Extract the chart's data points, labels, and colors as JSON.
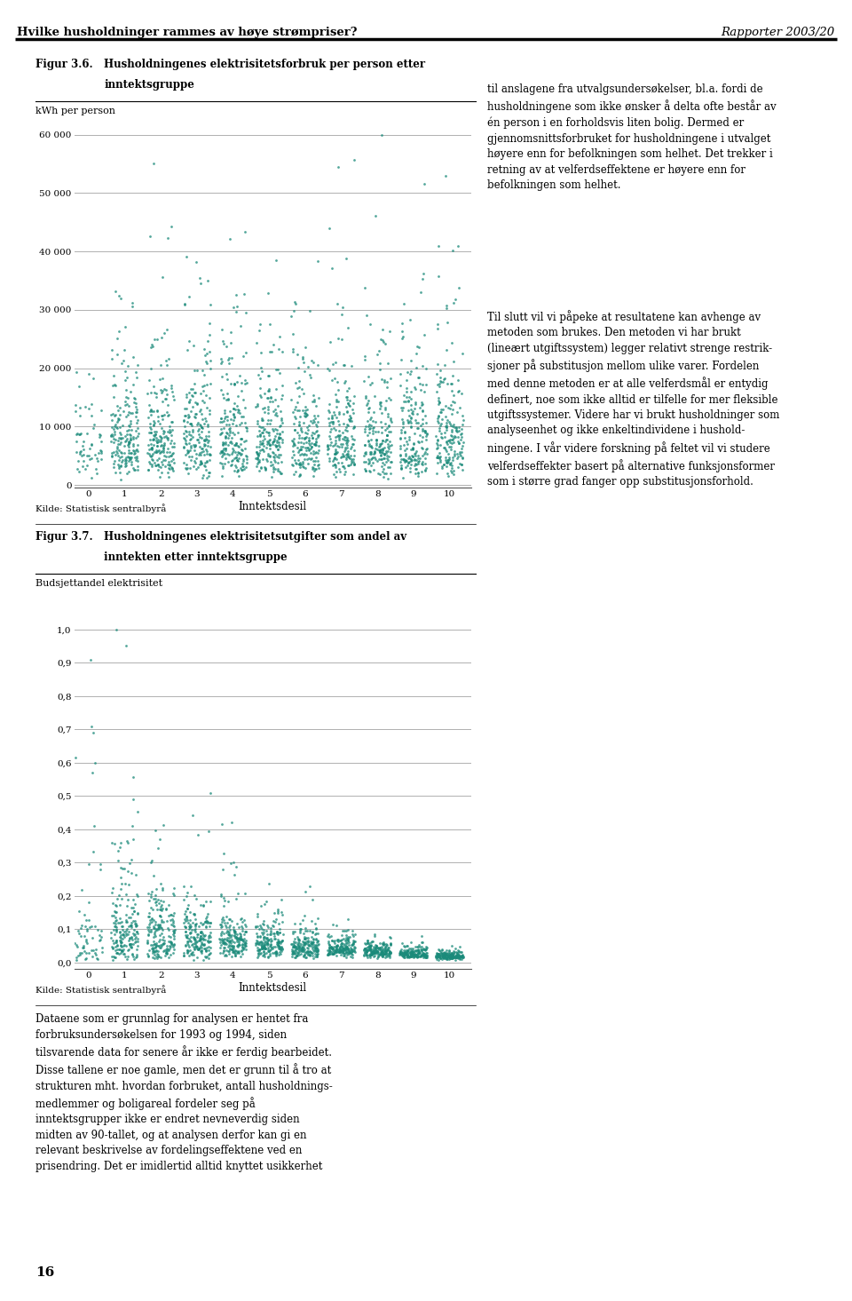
{
  "page_title_left": "Hvilke husholdninger rammes av høye strømpriser?",
  "page_title_right": "Rapporter 2003/20",
  "fig1_label": "Figur 3.6.",
  "fig1_title_line1": "Husholdningenes elektrisitetsforbruk per person etter",
  "fig1_title_line2": "inntektsgruppe",
  "fig1_ylabel": "kWh per person",
  "fig1_xlabel": "Inntektsdesil",
  "fig1_yticks": [
    0,
    10000,
    20000,
    30000,
    40000,
    50000,
    60000
  ],
  "fig1_ytick_labels": [
    "0",
    "10 000",
    "20 000",
    "30 000",
    "40 000",
    "50 000",
    "60 000"
  ],
  "fig1_xticks": [
    0,
    1,
    2,
    3,
    4,
    5,
    6,
    7,
    8,
    9,
    10
  ],
  "fig1_ylim": [
    -500,
    63000
  ],
  "fig1_xlim": [
    -0.4,
    10.6
  ],
  "fig2_label": "Figur 3.7.",
  "fig2_title_line1": "Husholdningenes elektrisitetsutgifter som andel av",
  "fig2_title_line2": "inntekten etter inntektsgruppe",
  "fig2_ylabel": "Budsjettandel elektrisitet",
  "fig2_xlabel": "Inntektsdesil",
  "fig2_yticks": [
    0.0,
    0.1,
    0.2,
    0.3,
    0.4,
    0.5,
    0.6,
    0.7,
    0.8,
    0.9,
    1.0
  ],
  "fig2_ytick_labels": [
    "0,0",
    "0,1",
    "0,2",
    "0,3",
    "0,4",
    "0,5",
    "0,6",
    "0,7",
    "0,8",
    "0,9",
    "1,0"
  ],
  "fig2_xticks": [
    0,
    1,
    2,
    3,
    4,
    5,
    6,
    7,
    8,
    9,
    10
  ],
  "fig2_ylim": [
    -0.02,
    1.05
  ],
  "fig2_xlim": [
    -0.4,
    10.6
  ],
  "dot_color": "#1a8a7a",
  "source_text": "Kilde: Statistisk sentralbyrå",
  "right_col_text1": "til anslagene fra utvalgsundersøkelser, bl.a. fordi de\nhusholdningene som ikke ønsker å delta ofte består av\nén person i en forholdsvis liten bolig. Dermed er\ngjennomsnittsforbruket for husholdningene i utvalget\nhøyere enn for befolkningen som helhet. Det trekker i\nretning av at velferdseffektene er høyere enn for\nbefolkningen som helhet.",
  "right_col_text2": "Til slutt vil vi påpeke at resultatene kan avhenge av\nmetoden som brukes. Den metoden vi har brukt\n(lineært utgiftssystem) legger relativt strenge restrik-\nsjoner på substitusjon mellom ulike varer. Fordelen\nmed denne metoden er at alle velferdsmål er entydig\ndefinert, noe som ikke alltid er tilfelle for mer fleksible\nutgiftssystemer. Videre har vi brukt husholdninger som\nanalyseenhet og ikke enkeltindividene i hushold-\nningene. I vår videre forskning på feltet vil vi studere\nvelferdseffekter basert på alternative funksjonsformer\nsom i større grad fanger opp substitusjonsforhold.",
  "bottom_text": "Dataene som er grunnlag for analysen er hentet fra\nforbruksundersøkelsen for 1993 og 1994, siden\ntilsvarende data for senere år ikke er ferdig bearbeidet.\nDisse tallene er noe gamle, men det er grunn til å tro at\nstrukturen mht. hvordan forbruket, antall husholdnings-\nmedlemmer og boligareal fordeler seg på\ninntektsgrupper ikke er endret nevneverdig siden\nmidten av 90-tallet, og at analysen derfor kan gi en\nrelevant beskrivelse av fordelingseffektene ved en\nprisendring. Det er imidlertid alltid knyttet usikkerhet",
  "page_number": "16",
  "background_color": "#ffffff",
  "grid_color": "#b0b0b0",
  "text_color": "#000000"
}
